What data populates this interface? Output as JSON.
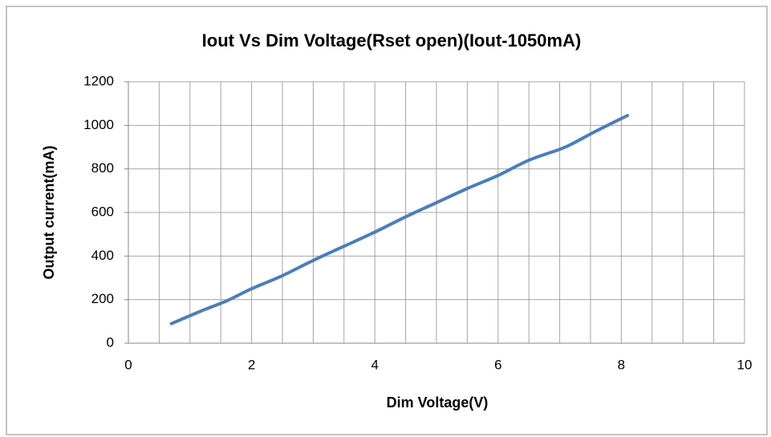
{
  "chart_data": {
    "type": "line",
    "title": "Iout Vs Dim Voltage(Rset open)(Iout-1050mA)",
    "x_label": "Dim Voltage(V)",
    "y_label": "Output current(mA)",
    "x": [
      0.7,
      1.2,
      1.6,
      2.0,
      2.5,
      3.0,
      3.5,
      4.0,
      4.5,
      5.0,
      5.5,
      6.0,
      6.5,
      7.0,
      7.2,
      7.6,
      8.1
    ],
    "series": [
      {
        "name": "Iout",
        "color": "#4a7ebb",
        "values": [
          90,
          150,
          195,
          250,
          310,
          380,
          445,
          510,
          580,
          645,
          710,
          770,
          840,
          890,
          915,
          975,
          1045
        ]
      }
    ],
    "xlim": [
      0,
      10
    ],
    "xticks": [
      0,
      2,
      4,
      6,
      8,
      10
    ],
    "xgrid": [
      0,
      0.5,
      1,
      1.5,
      2,
      2.5,
      3,
      3.5,
      4,
      4.5,
      5,
      5.5,
      6,
      6.5,
      7,
      7.5,
      8,
      8.5,
      9,
      9.5,
      10
    ],
    "ylim": [
      0,
      1200
    ],
    "yticks": [
      0,
      200,
      400,
      600,
      800,
      1000,
      1200
    ],
    "grid": true,
    "legend": false
  }
}
